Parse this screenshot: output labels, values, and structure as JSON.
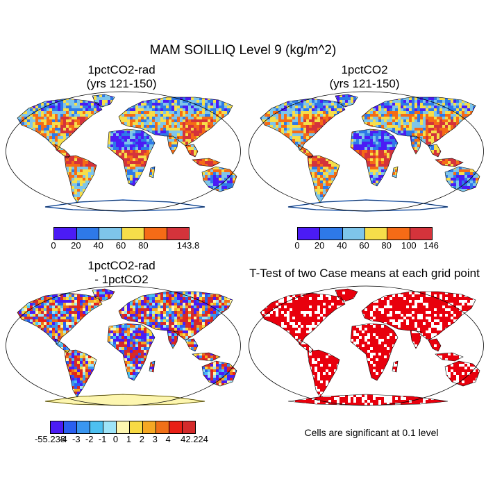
{
  "title": "MAM SOILLIQ Level 9 (kg/m^2)",
  "panels": [
    {
      "title_line1": "1pctCO2-rad",
      "title_line2": "(yrs 121-150)",
      "colorbar": {
        "colors": [
          "#4b1bf5",
          "#2e79e8",
          "#7ec5ea",
          "#f6de4a",
          "#f56b16",
          "#d4333b"
        ],
        "labels": [
          "0",
          "20",
          "40",
          "60",
          "80",
          "143.8"
        ]
      }
    },
    {
      "title_line1": "1pctCO2",
      "title_line2": "(yrs 121-150)",
      "colorbar": {
        "colors": [
          "#4b1bf5",
          "#2e79e8",
          "#7ec5ea",
          "#f6de4a",
          "#f56b16",
          "#d4333b"
        ],
        "labels": [
          "0",
          "20",
          "40",
          "60",
          "80",
          "100",
          "146"
        ]
      }
    },
    {
      "title_line1": "1pctCO2-rad",
      "title_line2": "- 1pctCO2",
      "colorbar": {
        "colors": [
          "#4b1bf5",
          "#2a5ff0",
          "#3a96f0",
          "#4dc0f0",
          "#9ee4f8",
          "#fdf6b0",
          "#f8da44",
          "#f5a823",
          "#f07018",
          "#e92016",
          "#d42b2b"
        ],
        "labels": [
          "-55.238",
          "-4",
          "-3",
          "-2",
          "-1",
          "0",
          "1",
          "2",
          "3",
          "4",
          "42.224"
        ]
      }
    },
    {
      "title": "T-Test of two Case means at each grid point",
      "note": "Cells are significant at 0.1 level",
      "color": "#e8000d"
    }
  ]
}
